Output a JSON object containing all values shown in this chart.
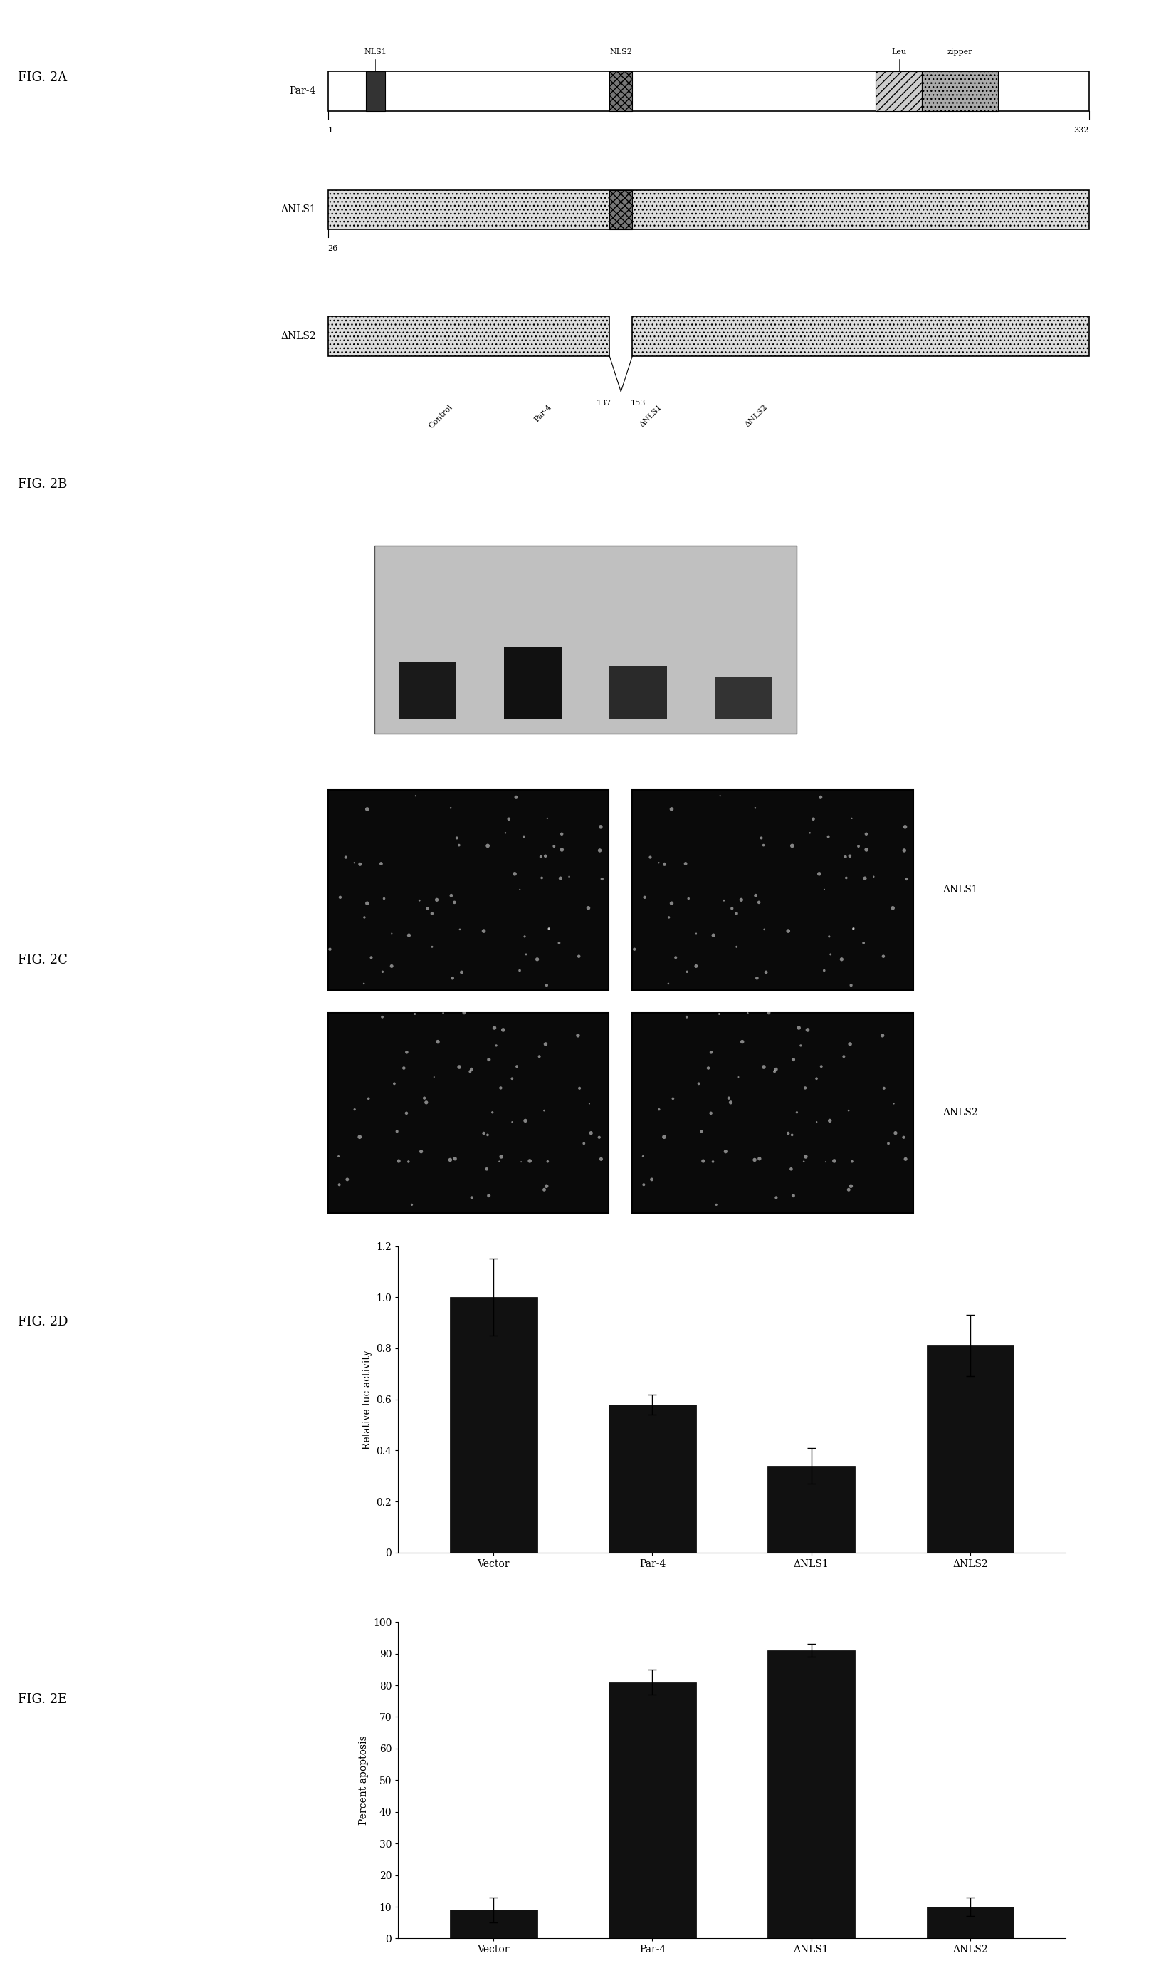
{
  "fig2D": {
    "categories": [
      "Vector",
      "Par-4",
      "ΔNLS1",
      "ΔNLS2"
    ],
    "values": [
      1.0,
      0.58,
      0.34,
      0.81
    ],
    "errors": [
      0.15,
      0.04,
      0.07,
      0.12
    ],
    "ylabel": "Relative luc activity",
    "ylim": [
      0,
      1.2
    ],
    "yticks": [
      0,
      0.2,
      0.4,
      0.6,
      0.8,
      1.0,
      1.2
    ]
  },
  "fig2E": {
    "categories": [
      "Vector",
      "Par-4",
      "ΔNLS1",
      "ΔNLS2"
    ],
    "values": [
      9,
      81,
      91,
      10
    ],
    "errors": [
      4,
      4,
      2,
      3
    ],
    "ylabel": "Percent apoptosis",
    "ylim": [
      0,
      100
    ],
    "yticks": [
      0,
      10,
      20,
      30,
      40,
      50,
      60,
      70,
      80,
      90,
      100
    ]
  },
  "bar_color": "#111111",
  "background_color": "#ffffff",
  "label_fontsize": 13,
  "tick_fontsize": 10,
  "axis_label_fontsize": 10,
  "fig_label_fontsize": 13
}
